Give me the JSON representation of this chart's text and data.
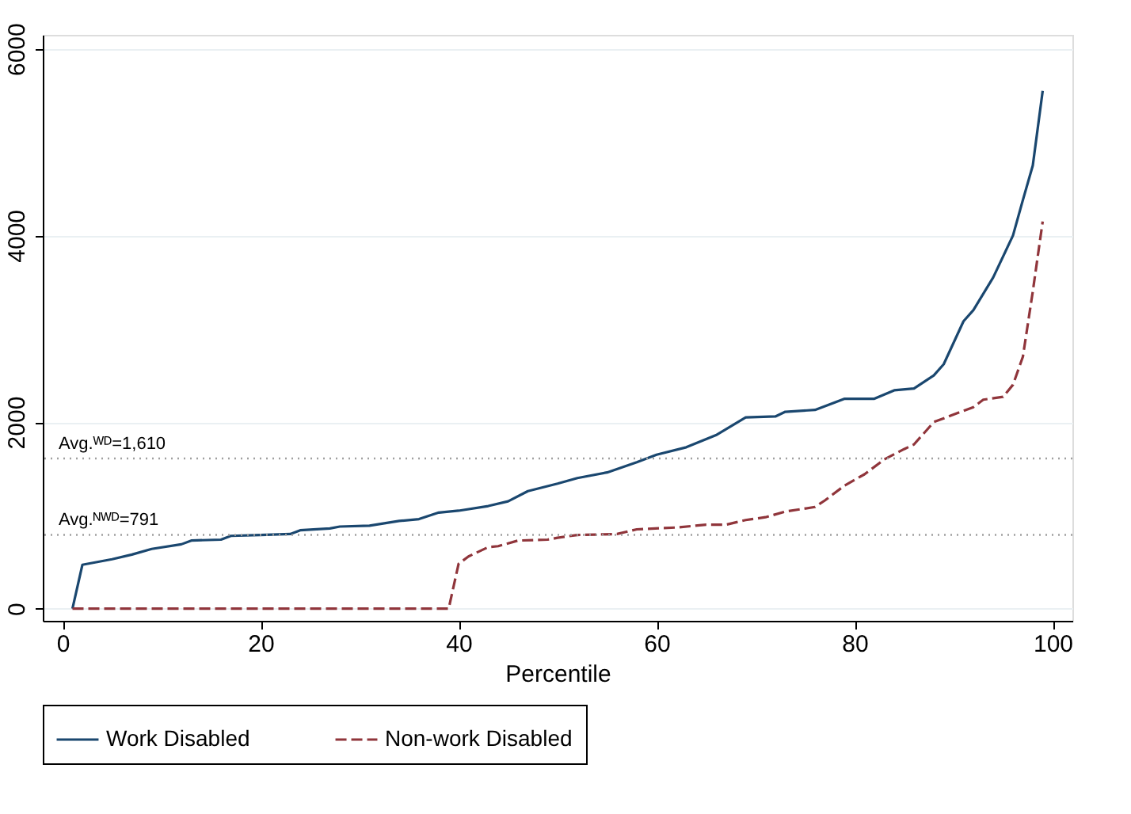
{
  "chart_data": {
    "type": "line",
    "xlabel": "Percentile",
    "series": [
      {
        "name": "Work Disabled",
        "color": "#1a476f",
        "line_style": "solid",
        "x": [
          1,
          2,
          5,
          7,
          9,
          12,
          13,
          16,
          17,
          20,
          23,
          24,
          27,
          28,
          31,
          34,
          36,
          38,
          40,
          43,
          45,
          47,
          50,
          52,
          55,
          58,
          60,
          63,
          66,
          69,
          72,
          73,
          76,
          79,
          82,
          84,
          86,
          88,
          89,
          91,
          92,
          94,
          96,
          97,
          98,
          99
        ],
        "values": [
          0,
          470,
          530,
          580,
          640,
          690,
          730,
          740,
          780,
          790,
          800,
          840,
          860,
          880,
          890,
          940,
          960,
          1030,
          1050,
          1100,
          1150,
          1260,
          1340,
          1400,
          1460,
          1570,
          1650,
          1730,
          1860,
          2050,
          2060,
          2110,
          2130,
          2250,
          2250,
          2340,
          2360,
          2500,
          2620,
          3080,
          3200,
          3550,
          4000,
          4380,
          4750,
          5550
        ]
      },
      {
        "name": "Non-work Disabled",
        "color": "#90353b",
        "line_style": "dashed",
        "x": [
          1,
          39,
          40,
          41,
          43,
          44,
          46,
          49,
          50,
          52,
          56,
          58,
          62,
          65,
          67,
          69,
          71,
          73,
          76,
          77,
          79,
          81,
          83,
          85,
          86,
          88,
          90,
          92,
          93,
          95,
          96,
          97,
          98,
          99
        ],
        "values": [
          0,
          0,
          480,
          560,
          660,
          670,
          730,
          740,
          760,
          790,
          800,
          850,
          870,
          900,
          900,
          950,
          980,
          1040,
          1090,
          1160,
          1320,
          1440,
          1600,
          1710,
          1760,
          2000,
          2080,
          2160,
          2240,
          2270,
          2400,
          2700,
          3400,
          4150
        ]
      }
    ],
    "xlim": [
      -2,
      102
    ],
    "xticks": [
      0,
      20,
      40,
      60,
      80,
      100
    ],
    "ylim": [
      -130,
      6150
    ],
    "yticks": [
      0,
      2000,
      4000,
      6000
    ],
    "grid": "y",
    "legend": "bottom",
    "marker": "none",
    "ref_lines": [
      {
        "axis": "y",
        "value": 1610,
        "label": "Avg.ᵂᴰ=1,610",
        "color": "#a0a0a0",
        "line_style": "dotted"
      },
      {
        "axis": "y",
        "value": 791,
        "label": "Avg.ᴺᵂᴰ=791",
        "color": "#a0a0a0",
        "line_style": "dotted"
      }
    ]
  }
}
